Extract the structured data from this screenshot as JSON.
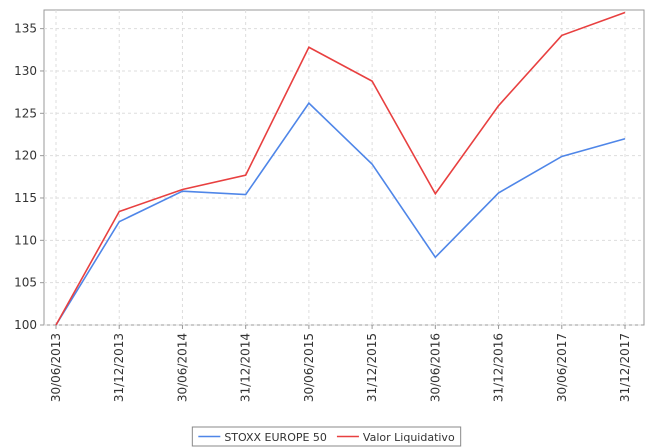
{
  "chart_data": {
    "type": "line",
    "categories": [
      "30/06/2013",
      "31/12/2013",
      "30/06/2014",
      "31/12/2014",
      "30/06/2015",
      "31/12/2015",
      "30/06/2016",
      "31/12/2016",
      "30/06/2017",
      "31/12/2017"
    ],
    "series": [
      {
        "name": "STOXX EUROPE 50",
        "color": "#4f86e8",
        "values": [
          100,
          112.2,
          115.8,
          115.4,
          126.2,
          119,
          108,
          115.6,
          119.9,
          122
        ]
      },
      {
        "name": "Valor Liquidativo",
        "color": "#e84040",
        "values": [
          100,
          113.4,
          116,
          117.7,
          132.8,
          128.8,
          115.5,
          125.9,
          134.2,
          136.9
        ]
      }
    ],
    "ylim": [
      100,
      137.2
    ],
    "yticks": [
      100,
      105,
      110,
      115,
      120,
      125,
      130,
      135
    ],
    "grid": true
  }
}
